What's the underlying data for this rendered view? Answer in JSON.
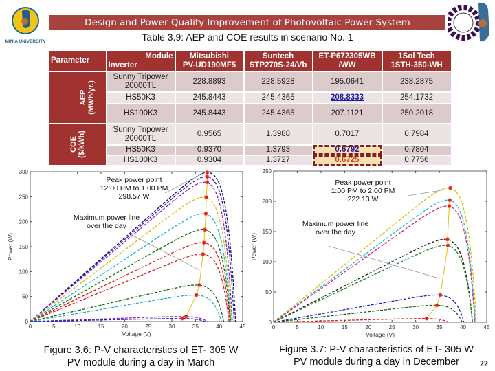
{
  "header": {
    "banner_title": "Design and Power Quality Improvement of Photovoltaic Power System",
    "table_caption": "Table 3.9: AEP and COE results in scenario No. 1",
    "left_logo_text": "MINIA UNIVERSITY",
    "banner_color": "#a8423e"
  },
  "table": {
    "parameter_label": "Parameter",
    "module_label": "Module",
    "inverter_label": "Inverter",
    "modules": [
      {
        "line1": "Mitsubishi",
        "line2": "PV-UD190MF5"
      },
      {
        "line1": "Suntech",
        "line2": "STP270S-24/Vb"
      },
      {
        "line1": "ET-P672305WB",
        "line2": "/WW"
      },
      {
        "line1": "1Sol Tech",
        "line2": "1STH-350-WH"
      }
    ],
    "groups": [
      {
        "line1": "AEP",
        "line2": "(MWh/yr.)"
      },
      {
        "line1": "COE",
        "line2": "($/kWh)"
      }
    ],
    "rows": [
      {
        "inverter": "Sunny Tripower 20000TL",
        "values": [
          "228.8893",
          "228.5928",
          "195.0641",
          "238.2875"
        ]
      },
      {
        "inverter": "HS50K3",
        "values": [
          "245.8443",
          "245.4365",
          "208.8333",
          "254.1732"
        ]
      },
      {
        "inverter": "HS100K3",
        "values": [
          "245.8443",
          "245.4365",
          "207.1121",
          "250.2018"
        ]
      },
      {
        "inverter": "Sunny Tripower 20000TL",
        "values": [
          "0.9565",
          "1.3988",
          "0.7017",
          "0.7984"
        ]
      },
      {
        "inverter": "HS50K3",
        "values": [
          "0.9370",
          "1.3793",
          "0.6792",
          "0.7804"
        ]
      },
      {
        "inverter": "HS100K3",
        "values": [
          "0.9304",
          "1.3727",
          "0.6725",
          "0.7756"
        ]
      }
    ]
  },
  "chart_data": [
    {
      "type": "line",
      "xlabel": "Voltage (V)",
      "ylabel": "Power (W)",
      "xlim": [
        0,
        45
      ],
      "ylim": [
        0,
        300
      ],
      "xticks": [
        0,
        5,
        10,
        15,
        20,
        25,
        30,
        35,
        40,
        45
      ],
      "yticks": [
        0,
        50,
        100,
        150,
        200,
        250,
        300
      ],
      "annotations": [
        "Peak power point",
        "12:00 PM to 1:00 PM",
        "298.57 W",
        "Maximum power line",
        "over the day"
      ],
      "max_power_line_color": "#e8c000",
      "series": [
        {
          "color": "#101060",
          "vmp": 37.5,
          "pmp": 298.57,
          "voc": 43.5
        },
        {
          "color": "#2020c0",
          "vmp": 37.5,
          "pmp": 290,
          "voc": 43.2
        },
        {
          "color": "#9020c0",
          "vmp": 37.5,
          "pmp": 279,
          "voc": 42.8
        },
        {
          "color": "#d0c000",
          "vmp": 37.3,
          "pmp": 249,
          "voc": 42.6
        },
        {
          "color": "#20b8c8",
          "vmp": 37.2,
          "pmp": 216,
          "voc": 42.5
        },
        {
          "color": "#107010",
          "vmp": 37.0,
          "pmp": 184,
          "voc": 42.4
        },
        {
          "color": "#e02020",
          "vmp": 36.8,
          "pmp": 158,
          "voc": 42.3
        },
        {
          "color": "#d02020",
          "vmp": 36.6,
          "pmp": 135,
          "voc": 42.1
        },
        {
          "color": "#106010",
          "vmp": 35.8,
          "pmp": 73,
          "voc": 41.0
        },
        {
          "color": "#20b0c0",
          "vmp": 35.2,
          "pmp": 53,
          "voc": 40.5
        },
        {
          "color": "#a020c0",
          "vmp": 33.0,
          "pmp": 10,
          "voc": 37.5
        },
        {
          "color": "#2020c0",
          "vmp": 32.2,
          "pmp": 6,
          "voc": 37.0
        }
      ]
    },
    {
      "type": "line",
      "xlabel": "Voltage (V)",
      "ylabel": "Power (W)",
      "xlim": [
        0,
        45
      ],
      "ylim": [
        0,
        250
      ],
      "xticks": [
        0,
        5,
        10,
        15,
        20,
        25,
        30,
        35,
        40,
        45
      ],
      "yticks": [
        0,
        50,
        100,
        150,
        200,
        250
      ],
      "annotations": [
        "Peak power point",
        "1:00 PM to 2:00 PM",
        "222.13 W",
        "Maximum power line",
        "over the day"
      ],
      "max_power_line_color": "#e8c000",
      "series": [
        {
          "color": "#d0c000",
          "vmp": 37.3,
          "pmp": 222.13,
          "voc": 42.8
        },
        {
          "color": "#20b8c8",
          "vmp": 37.2,
          "pmp": 202,
          "voc": 42.6
        },
        {
          "color": "#d02080",
          "vmp": 37.1,
          "pmp": 192,
          "voc": 42.5
        },
        {
          "color": "#202020",
          "vmp": 36.7,
          "pmp": 137,
          "voc": 42.0
        },
        {
          "color": "#208020",
          "vmp": 36.8,
          "pmp": 127,
          "voc": 42.0
        },
        {
          "color": "#2020c0",
          "vmp": 35.2,
          "pmp": 45,
          "voc": 40.2
        },
        {
          "color": "#106010",
          "vmp": 34.5,
          "pmp": 28,
          "voc": 39.8
        },
        {
          "color": "#e02020",
          "vmp": 32.3,
          "pmp": 6,
          "voc": 37.0
        }
      ]
    }
  ],
  "figures": [
    {
      "line1": "Figure 3.6: P-V characteristics of ET- 305 W",
      "line2": "PV module during a day in March"
    },
    {
      "line1": "Figure 3.7: P-V characteristics of ET- 305 W",
      "line2": "PV module during a day in December"
    }
  ],
  "page_number": "22"
}
